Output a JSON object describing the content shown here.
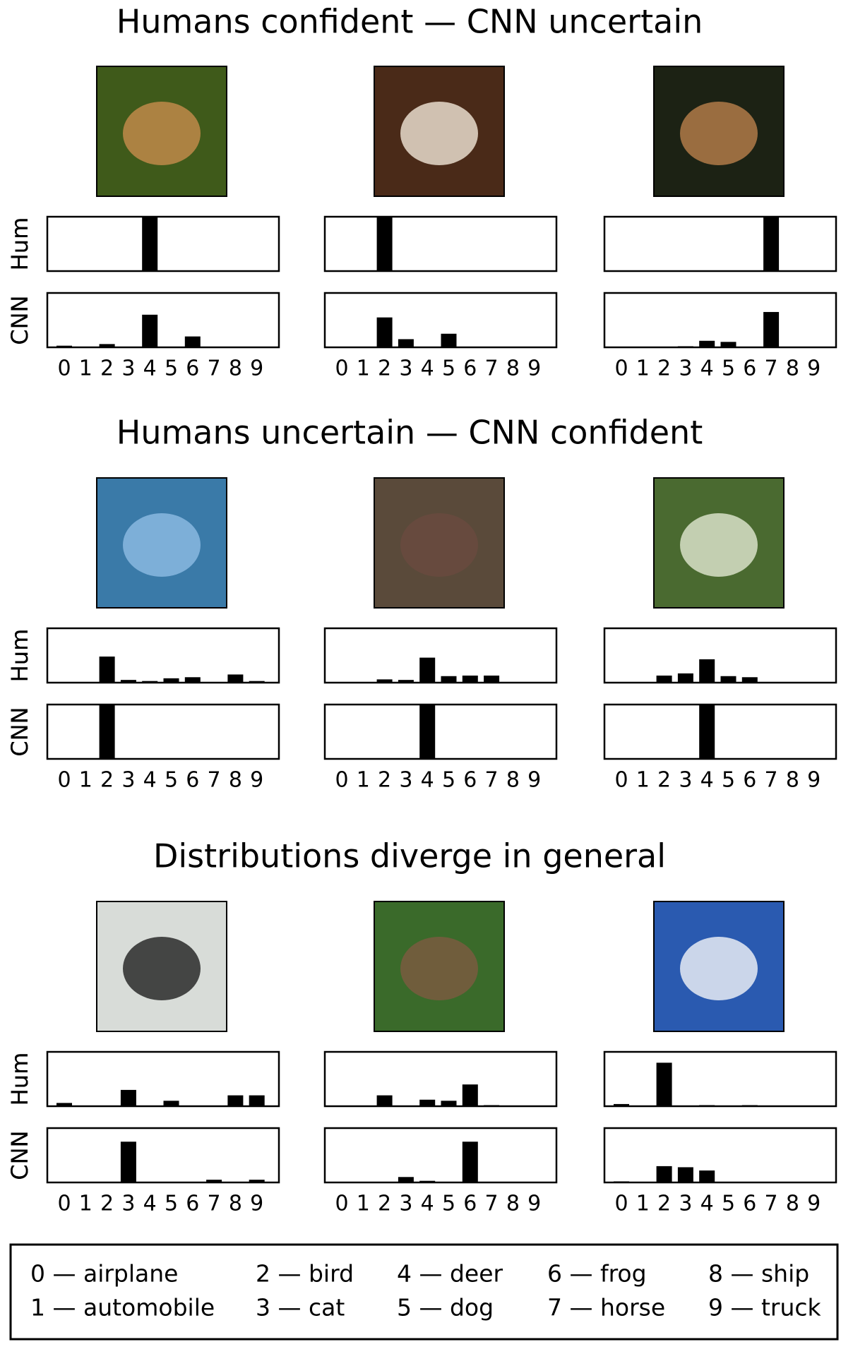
{
  "sections": [
    {
      "title": "Humans confident — CNN uncertain"
    },
    {
      "title": "Humans uncertain — CNN confident"
    },
    {
      "title": "Distributions diverge in general"
    }
  ],
  "chart_data": [
    {
      "type": "bar",
      "ylabel": "Hum",
      "categories": [
        null,
        null,
        null,
        null,
        null,
        null,
        null,
        null,
        null,
        null
      ],
      "values": [
        0,
        0,
        0,
        0,
        1,
        0,
        0,
        0,
        0,
        0
      ],
      "ylim": [
        0,
        1
      ],
      "color": "#000000"
    },
    {
      "type": "bar",
      "ylabel": "CNN",
      "categories": [
        "0",
        "1",
        "2",
        "3",
        "4",
        "5",
        "6",
        "7",
        "8",
        "9"
      ],
      "values": [
        0.03,
        0,
        0.06,
        0,
        0.6,
        0,
        0.2,
        0,
        0,
        0
      ],
      "ylim": [
        0,
        1
      ],
      "color": "#000000"
    },
    {
      "type": "bar",
      "ylabel": "Hum",
      "categories": [
        null,
        null,
        null,
        null,
        null,
        null,
        null,
        null,
        null,
        null
      ],
      "values": [
        0,
        0,
        1,
        0,
        0,
        0,
        0,
        0,
        0,
        0
      ],
      "ylim": [
        0,
        1
      ],
      "color": "#000000"
    },
    {
      "type": "bar",
      "ylabel": "CNN",
      "categories": [
        "0",
        "1",
        "2",
        "3",
        "4",
        "5",
        "6",
        "7",
        "8",
        "9"
      ],
      "values": [
        0,
        0,
        0.55,
        0.15,
        0,
        0.25,
        0,
        0,
        0,
        0
      ],
      "ylim": [
        0,
        1
      ],
      "color": "#000000"
    },
    {
      "type": "bar",
      "ylabel": "Hum",
      "categories": [
        null,
        null,
        null,
        null,
        null,
        null,
        null,
        null,
        null,
        null
      ],
      "values": [
        0,
        0,
        0,
        0,
        0,
        0,
        0,
        1,
        0,
        0
      ],
      "ylim": [
        0,
        1
      ],
      "color": "#000000"
    },
    {
      "type": "bar",
      "ylabel": "CNN",
      "categories": [
        "0",
        "1",
        "2",
        "3",
        "4",
        "5",
        "6",
        "7",
        "8",
        "9"
      ],
      "values": [
        0,
        0,
        0,
        0.02,
        0.12,
        0.1,
        0,
        0.65,
        0,
        0
      ],
      "ylim": [
        0,
        1
      ],
      "color": "#000000"
    },
    {
      "type": "bar",
      "ylabel": "Hum",
      "categories": [
        null,
        null,
        null,
        null,
        null,
        null,
        null,
        null,
        null,
        null
      ],
      "values": [
        0,
        0.01,
        0.48,
        0.05,
        0.03,
        0.08,
        0.1,
        0,
        0.15,
        0.03
      ],
      "ylim": [
        0,
        1
      ],
      "color": "#000000"
    },
    {
      "type": "bar",
      "ylabel": "CNN",
      "categories": [
        "0",
        "1",
        "2",
        "3",
        "4",
        "5",
        "6",
        "7",
        "8",
        "9"
      ],
      "values": [
        0,
        0,
        1,
        0,
        0,
        0,
        0,
        0,
        0,
        0
      ],
      "ylim": [
        0,
        1
      ],
      "color": "#000000"
    },
    {
      "type": "bar",
      "ylabel": "Hum",
      "categories": [
        null,
        null,
        null,
        null,
        null,
        null,
        null,
        null,
        null,
        null
      ],
      "values": [
        0,
        0,
        0.06,
        0.05,
        0.46,
        0.12,
        0.13,
        0.13,
        0,
        0
      ],
      "ylim": [
        0,
        1
      ],
      "color": "#000000"
    },
    {
      "type": "bar",
      "ylabel": "CNN",
      "categories": [
        "0",
        "1",
        "2",
        "3",
        "4",
        "5",
        "6",
        "7",
        "8",
        "9"
      ],
      "values": [
        0,
        0,
        0,
        0,
        1,
        0,
        0,
        0,
        0,
        0
      ],
      "ylim": [
        0,
        1
      ],
      "color": "#000000"
    },
    {
      "type": "bar",
      "ylabel": "Hum",
      "categories": [
        null,
        null,
        null,
        null,
        null,
        null,
        null,
        null,
        null,
        null
      ],
      "values": [
        0,
        0,
        0.13,
        0.17,
        0.43,
        0.12,
        0.1,
        0,
        0,
        0
      ],
      "ylim": [
        0,
        1
      ],
      "color": "#000000"
    },
    {
      "type": "bar",
      "ylabel": "CNN",
      "categories": [
        "0",
        "1",
        "2",
        "3",
        "4",
        "5",
        "6",
        "7",
        "8",
        "9"
      ],
      "values": [
        0,
        0,
        0,
        0,
        1,
        0,
        0,
        0,
        0,
        0
      ],
      "ylim": [
        0,
        1
      ],
      "color": "#000000"
    },
    {
      "type": "bar",
      "ylabel": "Hum",
      "categories": [
        null,
        null,
        null,
        null,
        null,
        null,
        null,
        null,
        null,
        null
      ],
      "values": [
        0.06,
        0,
        0.01,
        0.3,
        0,
        0.1,
        0,
        0,
        0.2,
        0.2
      ],
      "ylim": [
        0,
        1
      ],
      "color": "#000000"
    },
    {
      "type": "bar",
      "ylabel": "CNN",
      "categories": [
        "0",
        "1",
        "2",
        "3",
        "4",
        "5",
        "6",
        "7",
        "8",
        "9"
      ],
      "values": [
        0,
        0,
        0,
        0.75,
        0,
        0,
        0,
        0.05,
        0,
        0.05
      ],
      "ylim": [
        0,
        1
      ],
      "color": "#000000"
    },
    {
      "type": "bar",
      "ylabel": "Hum",
      "categories": [
        null,
        null,
        null,
        null,
        null,
        null,
        null,
        null,
        null,
        null
      ],
      "values": [
        0,
        0,
        0.2,
        0,
        0.12,
        0.1,
        0.4,
        0.02,
        0,
        0
      ],
      "ylim": [
        0,
        1
      ],
      "color": "#000000"
    },
    {
      "type": "bar",
      "ylabel": "CNN",
      "categories": [
        "0",
        "1",
        "2",
        "3",
        "4",
        "5",
        "6",
        "7",
        "8",
        "9"
      ],
      "values": [
        0,
        0,
        0,
        0.1,
        0.03,
        0,
        0.75,
        0,
        0,
        0
      ],
      "ylim": [
        0,
        1
      ],
      "color": "#000000"
    },
    {
      "type": "bar",
      "ylabel": "Hum",
      "categories": [
        null,
        null,
        null,
        null,
        null,
        null,
        null,
        null,
        null,
        null
      ],
      "values": [
        0.04,
        0,
        0.8,
        0,
        0.02,
        0,
        0.02,
        0.01,
        0.01,
        0.01
      ],
      "ylim": [
        0,
        1
      ],
      "color": "#000000"
    },
    {
      "type": "bar",
      "ylabel": "CNN",
      "categories": [
        "0",
        "1",
        "2",
        "3",
        "4",
        "5",
        "6",
        "7",
        "8",
        "9"
      ],
      "values": [
        0.02,
        0,
        0.3,
        0.28,
        0.22,
        0.01,
        0,
        0,
        0,
        0
      ],
      "ylim": [
        0,
        1
      ],
      "color": "#000000"
    }
  ],
  "legend": [
    "0 — airplane",
    "1 — automobile",
    "2 — bird",
    "3 — cat",
    "4 — deer",
    "5 — dog",
    "6 — frog",
    "7 — horse",
    "8 — ship",
    "9 — truck"
  ]
}
